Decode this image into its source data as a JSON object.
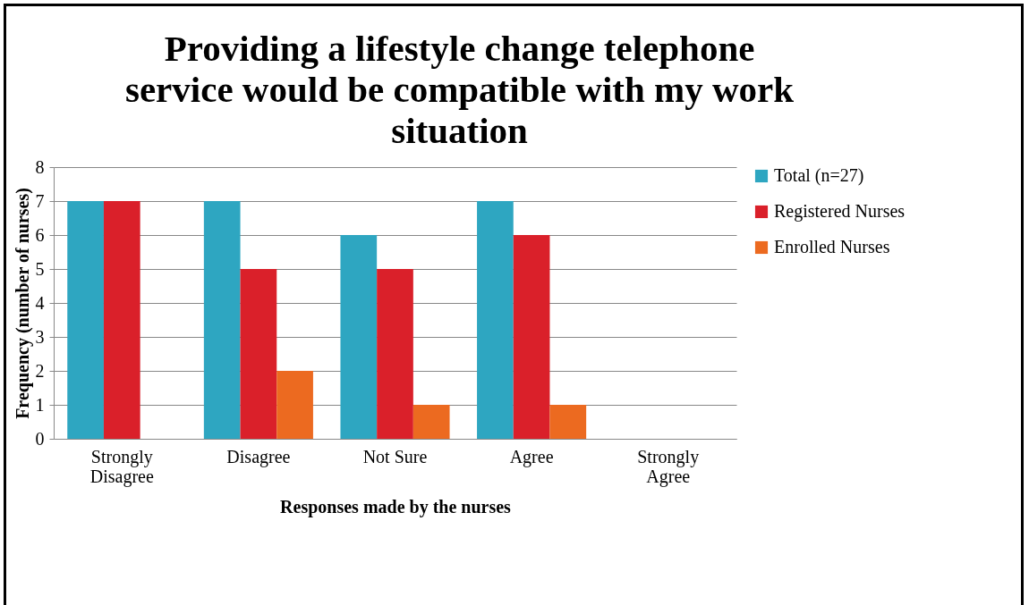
{
  "chart_data": {
    "type": "bar",
    "title": "Providing a lifestyle change telephone service would be compatible with my work situation",
    "xlabel": "Responses made by the nurses",
    "ylabel": "Frequency (number of nurses)",
    "categories": [
      "Strongly Disagree",
      "Disagree",
      "Not Sure",
      "Agree",
      "Strongly Agree"
    ],
    "series": [
      {
        "name": "Total (n=27)",
        "color": "#2ea6c1",
        "values": [
          7,
          7,
          6,
          7,
          0
        ]
      },
      {
        "name": "Registered Nurses",
        "color": "#da202a",
        "values": [
          7,
          5,
          5,
          6,
          0
        ]
      },
      {
        "name": "Enrolled Nurses",
        "color": "#ec6a20",
        "values": [
          0,
          2,
          1,
          1,
          0
        ]
      }
    ],
    "ylim": [
      0,
      8
    ],
    "yticks": [
      0,
      1,
      2,
      3,
      4,
      5,
      6,
      7,
      8
    ],
    "grid": "y",
    "legend": "right"
  }
}
